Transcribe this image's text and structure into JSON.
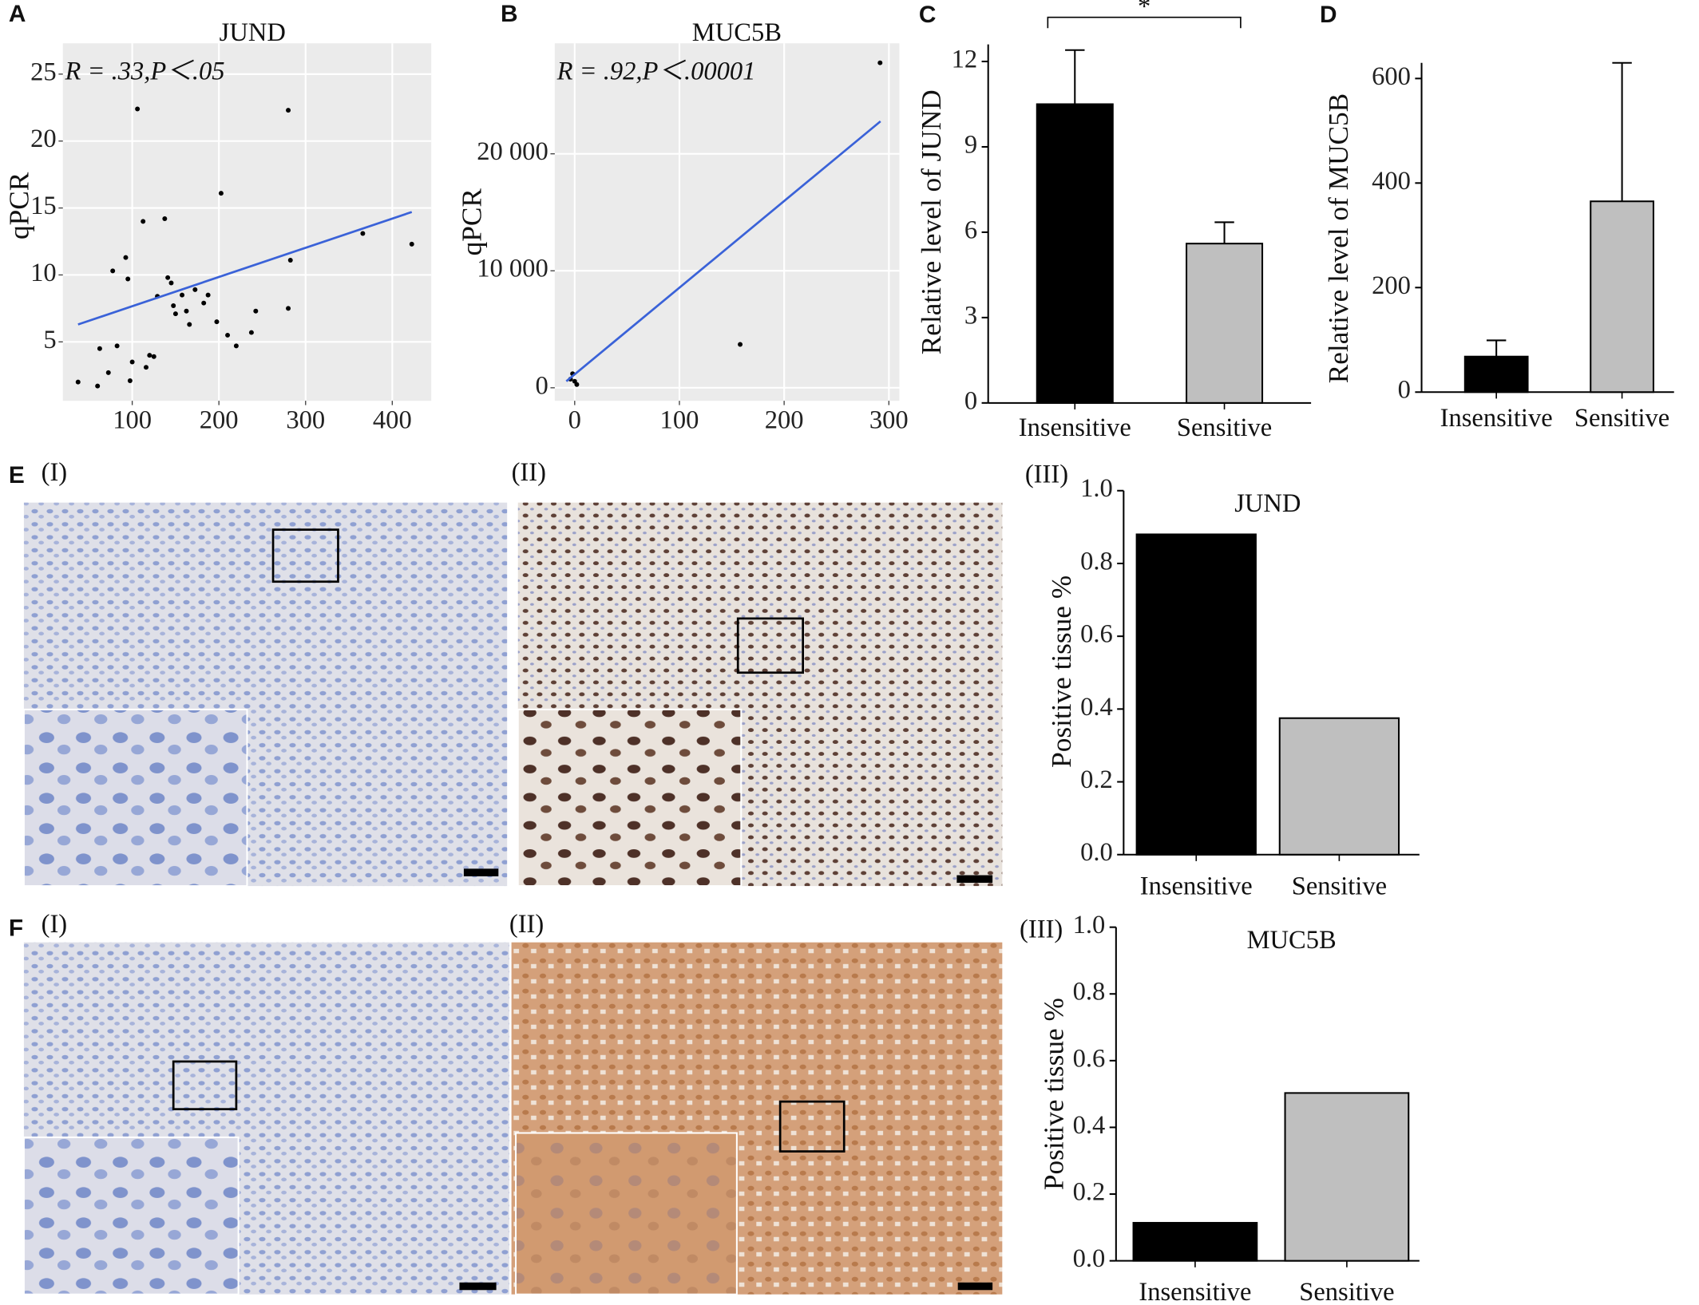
{
  "chart_data": [
    {
      "panel": "A",
      "type": "scatter",
      "title": "JUND",
      "annotation": "R = .33,P＜.05",
      "y_label": "qPCR",
      "x": [
        37.5,
        60,
        62.5,
        72.5,
        77.5,
        82.5,
        92.5,
        95,
        97.5,
        100,
        106,
        112.5,
        116,
        120,
        125,
        129,
        137.5,
        141,
        145,
        147.5,
        150,
        157.5,
        162.5,
        166,
        172.5,
        182.5,
        187.5,
        197.5,
        202.5,
        210,
        220,
        237.5,
        242.5,
        280,
        282.5,
        280,
        366,
        422.5
      ],
      "y": [
        2.0,
        1.7,
        4.5,
        2.7,
        10.3,
        4.7,
        11.3,
        9.7,
        2.1,
        3.5,
        22.4,
        14.0,
        3.1,
        4.0,
        3.9,
        8.4,
        14.2,
        9.8,
        9.4,
        7.7,
        7.1,
        8.5,
        7.3,
        6.3,
        8.9,
        7.9,
        8.5,
        6.5,
        16.1,
        5.5,
        4.7,
        5.7,
        7.3,
        22.3,
        11.1,
        7.5,
        13.1,
        12.3
      ],
      "trend_line": {
        "x": [
          37.5,
          422.5
        ],
        "y": [
          6.3,
          14.7
        ]
      },
      "color": "#000000",
      "line_color": "#3a62d8",
      "background": "#ebebeb",
      "xlim": [
        20,
        445
      ],
      "ylim": [
        0.6,
        27.3
      ],
      "xticks": [
        100,
        200,
        300,
        400
      ],
      "yticks": [
        5,
        10,
        15,
        20,
        25
      ],
      "grid": true
    },
    {
      "panel": "B",
      "type": "scatter",
      "title": "MUC5B",
      "annotation": "R = .92,P＜.00001",
      "y_label": "qPCR",
      "x": [
        291.6,
        158,
        -2,
        0,
        2,
        -4
      ],
      "y": [
        27778,
        3704,
        1204,
        556,
        278,
        740
      ],
      "trend_line": {
        "x": [
          -8,
          292
        ],
        "y": [
          556,
          22778
        ]
      },
      "color": "#000000",
      "line_color": "#3a62d8",
      "background": "#ebebeb",
      "xlim": [
        -19,
        310
      ],
      "ylim": [
        -1111,
        29444
      ],
      "xticks": [
        0,
        100,
        200,
        300
      ],
      "yticks": [
        0,
        {
          "value": 10000,
          "label": "10 000"
        },
        {
          "value": 20000,
          "label": "20 000"
        }
      ],
      "grid": true
    },
    {
      "panel": "C",
      "type": "bar",
      "y_label": "Relative level of JUND",
      "categories": [
        "Insensitive",
        "Sensitive"
      ],
      "values": [
        10.5,
        5.6
      ],
      "errors": [
        1.9,
        0.75
      ],
      "colors": [
        "#000000",
        "#bfbfbf"
      ],
      "significance": "*",
      "ylim": [
        0,
        12.6
      ],
      "yticks": [
        0,
        3,
        6,
        9,
        12
      ]
    },
    {
      "panel": "D",
      "type": "bar",
      "y_label": "Relative level of MUC5B",
      "categories": [
        "Insensitive",
        "Sensitive"
      ],
      "values": [
        68,
        365
      ],
      "errors": [
        31,
        265
      ],
      "colors": [
        "#000000",
        "#bfbfbf"
      ],
      "ylim": [
        0,
        630
      ],
      "yticks": [
        0,
        200,
        400,
        600
      ]
    },
    {
      "label": "(III)",
      "type": "bar",
      "title": "JUND",
      "y_label": "Positive tissue %",
      "categories": [
        "Insensitive",
        "Sensitive"
      ],
      "values": [
        0.88,
        0.375
      ],
      "colors": [
        "#000000",
        "#bfbfbf"
      ],
      "ylim": [
        0,
        1
      ],
      "yticks": [
        {
          "value": 0,
          "label": "0.0"
        },
        0.2,
        0.4,
        0.6,
        0.8,
        {
          "value": 1,
          "label": "1.0"
        }
      ]
    },
    {
      "label": "(III)",
      "type": "bar",
      "title": "MUC5B",
      "y_label": "Positive tissue %",
      "categories": [
        "Insensitive",
        "Sensitive"
      ],
      "values": [
        0.114,
        0.503
      ],
      "colors": [
        "#000000",
        "#bfbfbf"
      ],
      "ylim": [
        0,
        1
      ],
      "yticks": [
        {
          "value": 0,
          "label": "0.0"
        },
        0.2,
        0.4,
        0.6,
        0.8,
        {
          "value": 1,
          "label": "1.0"
        }
      ]
    }
  ],
  "micrographs": [
    {
      "panel": "E",
      "labels": [
        "(I)",
        "(II)"
      ]
    },
    {
      "panel": "F",
      "labels": [
        "(I)",
        "(II)"
      ]
    }
  ]
}
